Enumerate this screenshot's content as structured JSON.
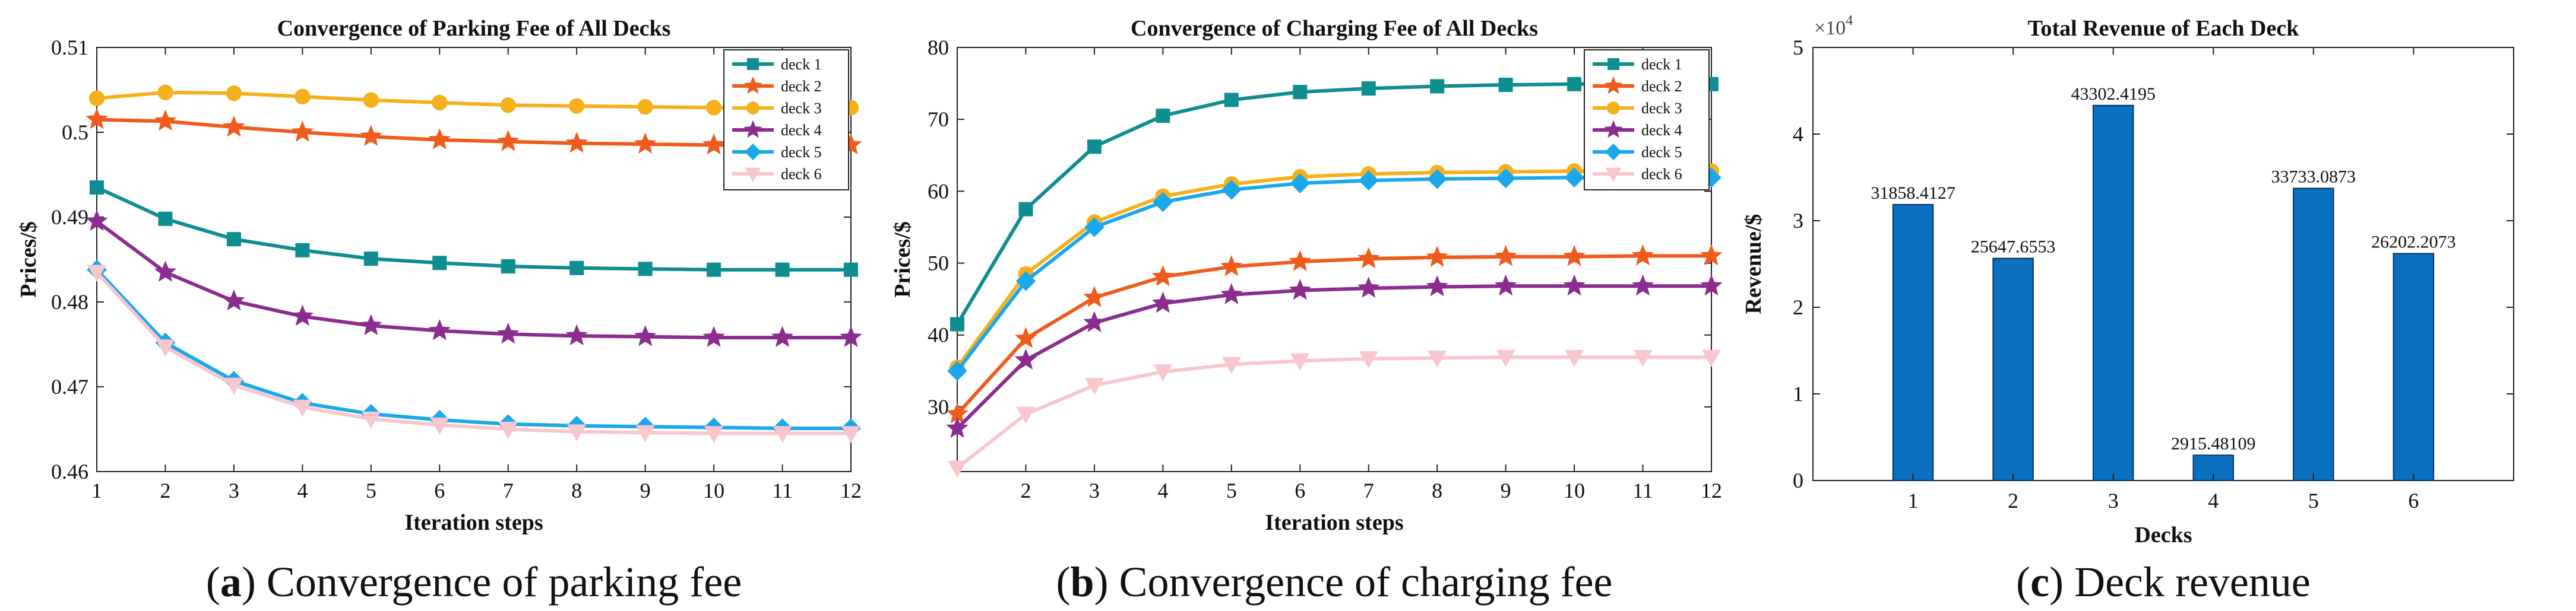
{
  "chart_data": [
    {
      "type": "line",
      "title": "Convergence of Parking Fee of All Decks",
      "xlabel": "Iteration steps",
      "ylabel": "Prices/$",
      "caption_letter": "a",
      "caption_text": " Convergence of parking fee",
      "xlim": [
        1,
        12
      ],
      "ylim": [
        0.46,
        0.51
      ],
      "xticks": [
        1,
        2,
        3,
        4,
        5,
        6,
        7,
        8,
        9,
        10,
        11,
        12
      ],
      "yticks": [
        0.46,
        0.47,
        0.48,
        0.49,
        0.5,
        0.51
      ],
      "ytick_labels": [
        "0.46",
        "0.47",
        "0.48",
        "0.49",
        "0.5",
        "0.51"
      ],
      "x": [
        1,
        2,
        3,
        4,
        5,
        6,
        7,
        8,
        9,
        10,
        11,
        12
      ],
      "legend_position": "top-right",
      "series": [
        {
          "name": "deck 1",
          "color": "#0e8e91",
          "marker": "square",
          "values": [
            0.4935,
            0.4898,
            0.4874,
            0.4861,
            0.4851,
            0.4846,
            0.4842,
            0.484,
            0.4839,
            0.4838,
            0.4838,
            0.4838
          ]
        },
        {
          "name": "deck 2",
          "color": "#f05a1c",
          "marker": "star",
          "values": [
            0.5015,
            0.5013,
            0.5006,
            0.5,
            0.4995,
            0.4991,
            0.4989,
            0.4987,
            0.4986,
            0.4985,
            0.4985,
            0.4985
          ]
        },
        {
          "name": "deck 3",
          "color": "#f5b01a",
          "marker": "circle",
          "values": [
            0.504,
            0.5047,
            0.5046,
            0.5042,
            0.5038,
            0.5035,
            0.5032,
            0.5031,
            0.503,
            0.5029,
            0.5029,
            0.5029
          ]
        },
        {
          "name": "deck 4",
          "color": "#8b2c8f",
          "marker": "star",
          "values": [
            0.4895,
            0.4835,
            0.4801,
            0.4783,
            0.4772,
            0.4766,
            0.4762,
            0.476,
            0.4759,
            0.4758,
            0.4758,
            0.4758
          ]
        },
        {
          "name": "deck 5",
          "color": "#1aa8ea",
          "marker": "diamond",
          "values": [
            0.4838,
            0.4752,
            0.4707,
            0.4681,
            0.4668,
            0.4661,
            0.4656,
            0.4654,
            0.4653,
            0.4652,
            0.4651,
            0.4651
          ]
        },
        {
          "name": "deck 6",
          "color": "#f9c6cd",
          "marker": "triangle-down",
          "values": [
            0.4835,
            0.4747,
            0.4702,
            0.4676,
            0.4662,
            0.4655,
            0.465,
            0.4647,
            0.4646,
            0.4645,
            0.4645,
            0.4645
          ]
        }
      ]
    },
    {
      "type": "line",
      "title": "Convergence of Charging Fee of All Decks",
      "xlabel": "Iteration steps",
      "ylabel": "Prices/$",
      "caption_letter": "b",
      "caption_text": " Convergence of charging fee",
      "xlim": [
        1,
        12
      ],
      "ylim": [
        21,
        80
      ],
      "xticks": [
        2,
        3,
        4,
        5,
        6,
        7,
        8,
        9,
        10,
        11,
        12
      ],
      "yticks": [
        30,
        40,
        50,
        60,
        70,
        80
      ],
      "ytick_labels": [
        "30",
        "40",
        "50",
        "60",
        "70",
        "80"
      ],
      "x": [
        1,
        2,
        3,
        4,
        5,
        6,
        7,
        8,
        9,
        10,
        11,
        12
      ],
      "legend_position": "top-right",
      "series": [
        {
          "name": "deck 1",
          "color": "#0e8e91",
          "marker": "square",
          "values": [
            41.5,
            57.5,
            66.2,
            70.5,
            72.7,
            73.8,
            74.3,
            74.6,
            74.8,
            74.9,
            74.9,
            74.9
          ]
        },
        {
          "name": "deck 2",
          "color": "#f05a1c",
          "marker": "star",
          "values": [
            29.0,
            39.5,
            45.2,
            48.1,
            49.5,
            50.2,
            50.6,
            50.8,
            50.9,
            50.9,
            51.0,
            51.0
          ]
        },
        {
          "name": "deck 3",
          "color": "#f5b01a",
          "marker": "circle",
          "values": [
            35.5,
            48.5,
            55.7,
            59.3,
            61.0,
            62.0,
            62.4,
            62.6,
            62.7,
            62.8,
            62.8,
            62.8
          ]
        },
        {
          "name": "deck 4",
          "color": "#8b2c8f",
          "marker": "star",
          "values": [
            27.0,
            36.5,
            41.7,
            44.4,
            45.6,
            46.2,
            46.5,
            46.7,
            46.8,
            46.8,
            46.8,
            46.8
          ]
        },
        {
          "name": "deck 5",
          "color": "#1aa8ea",
          "marker": "diamond",
          "values": [
            35.0,
            47.5,
            55.0,
            58.5,
            60.2,
            61.1,
            61.5,
            61.7,
            61.8,
            61.9,
            61.9,
            61.9
          ]
        },
        {
          "name": "deck 6",
          "color": "#f9c6cd",
          "marker": "triangle-down",
          "values": [
            21.5,
            29.0,
            33.0,
            34.9,
            35.9,
            36.4,
            36.7,
            36.8,
            36.9,
            36.9,
            36.9,
            36.9
          ]
        }
      ]
    },
    {
      "type": "bar",
      "title": "Total Revenue of Each Deck",
      "xlabel": "Decks",
      "ylabel": "Revenue/$",
      "caption_letter": "c",
      "caption_text": " Deck revenue",
      "exponent_base": "×10",
      "exponent_power": "4",
      "color": "#0b70c0",
      "xlim": [
        0,
        7
      ],
      "ylim": [
        0,
        50000
      ],
      "categories": [
        "1",
        "2",
        "3",
        "4",
        "5",
        "6"
      ],
      "values": [
        31858.4127,
        25647.6553,
        43302.4195,
        2915.48109,
        33733.0873,
        26202.2073
      ],
      "data_labels": [
        "31858.4127",
        "25647.6553",
        "43302.4195",
        "2915.48109",
        "33733.0873",
        "26202.2073"
      ],
      "yticks": [
        0,
        10000,
        20000,
        30000,
        40000,
        50000
      ],
      "ytick_labels": [
        "0",
        "1",
        "2",
        "3",
        "4",
        "5"
      ]
    }
  ]
}
